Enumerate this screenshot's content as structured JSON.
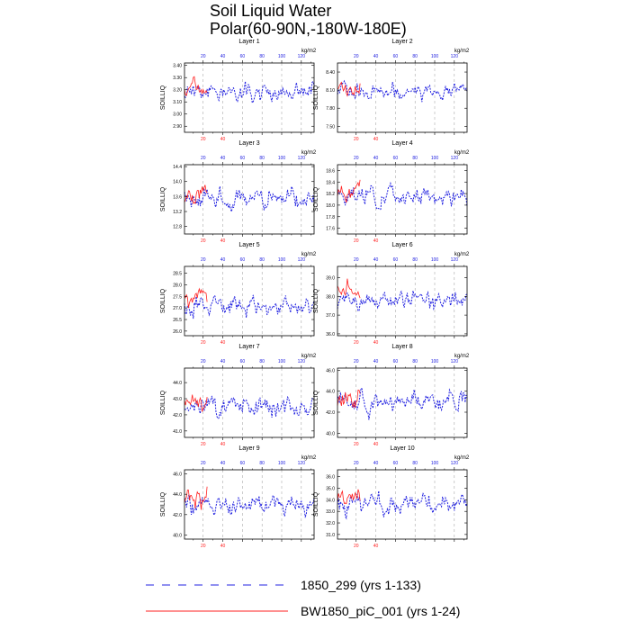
{
  "page": {
    "title_line1": "Soil Liquid Water",
    "title_line2": "Polar(60-90N,-180W-180E)",
    "legend": [
      {
        "label": "1850_299 (yrs 1-133)",
        "style": "dashed",
        "color": "#2020e0"
      },
      {
        "label": "BW1850_piC_001 (yrs 1-24)",
        "style": "solid",
        "color": "#ff2020"
      }
    ]
  },
  "chart_data": [
    {
      "type": "line",
      "title": "Layer 1",
      "units": "kg/m2",
      "ylabel": "SOILLIQ",
      "ylim": [
        2.85,
        3.42
      ],
      "yticks": [
        2.9,
        3.0,
        3.1,
        3.2,
        3.3,
        3.4
      ],
      "ytick_labels": [
        "2.90",
        "3.00",
        "3.10",
        "3.20",
        "3.30",
        "3.40"
      ],
      "xlim": [
        1,
        133
      ],
      "xticks": [
        20,
        40,
        60,
        80,
        100,
        120
      ],
      "xtick_labels": [
        "20",
        "40",
        "60",
        "80",
        "100",
        "120"
      ],
      "series_colors": [
        "#2020e0",
        "#ff2020"
      ],
      "series": [
        {
          "name": "1850_299 (yrs 1-133)",
          "years": [
            1,
            133
          ],
          "mean": 3.18,
          "amp": 0.07,
          "seed": 11
        },
        {
          "name": "BW1850_piC_001 (yrs 1-24)",
          "years": [
            1,
            24
          ],
          "mean": 3.2,
          "amp": 0.07,
          "seed": 111
        }
      ]
    },
    {
      "type": "line",
      "title": "Layer 2",
      "units": "kg/m2",
      "ylabel": "SOILLIQ",
      "ylim": [
        7.4,
        8.55
      ],
      "yticks": [
        7.5,
        7.8,
        8.1,
        8.4
      ],
      "ytick_labels": [
        "7.50",
        "7.80",
        "8.10",
        "8.40"
      ],
      "xlim": [
        1,
        133
      ],
      "xticks": [
        20,
        40,
        60,
        80,
        100,
        120
      ],
      "xtick_labels": [
        "20",
        "40",
        "60",
        "80",
        "100",
        "120"
      ],
      "series_colors": [
        "#2020e0",
        "#ff2020"
      ],
      "series": [
        {
          "name": "1850_299 (yrs 1-133)",
          "years": [
            1,
            133
          ],
          "mean": 8.08,
          "amp": 0.14,
          "seed": 12
        },
        {
          "name": "BW1850_piC_001 (yrs 1-24)",
          "years": [
            1,
            24
          ],
          "mean": 8.12,
          "amp": 0.14,
          "seed": 112
        }
      ]
    },
    {
      "type": "line",
      "title": "Layer 3",
      "units": "kg/m2",
      "ylabel": "SOILLIQ",
      "ylim": [
        12.6,
        14.45
      ],
      "yticks": [
        12.8,
        13.2,
        13.6,
        14.0,
        14.4
      ],
      "ytick_labels": [
        "12.8",
        "13.2",
        "13.6",
        "14.0",
        "14.4"
      ],
      "xlim": [
        1,
        133
      ],
      "xticks": [
        20,
        40,
        60,
        80,
        100,
        120
      ],
      "xtick_labels": [
        "20",
        "40",
        "60",
        "80",
        "100",
        "120"
      ],
      "series_colors": [
        "#2020e0",
        "#ff2020"
      ],
      "series": [
        {
          "name": "1850_299 (yrs 1-133)",
          "years": [
            1,
            133
          ],
          "mean": 13.55,
          "amp": 0.25,
          "seed": 13
        },
        {
          "name": "BW1850_piC_001 (yrs 1-24)",
          "years": [
            1,
            24
          ],
          "mean": 13.62,
          "amp": 0.25,
          "seed": 113
        }
      ]
    },
    {
      "type": "line",
      "title": "Layer 4",
      "units": "kg/m2",
      "ylabel": "SOILLIQ",
      "ylim": [
        17.5,
        18.7
      ],
      "yticks": [
        17.6,
        17.8,
        18.0,
        18.2,
        18.4,
        18.6
      ],
      "ytick_labels": [
        "17.6",
        "17.8",
        "18.0",
        "18.2",
        "18.4",
        "18.6"
      ],
      "xlim": [
        1,
        133
      ],
      "xticks": [
        20,
        40,
        60,
        80,
        100,
        120
      ],
      "xtick_labels": [
        "20",
        "40",
        "60",
        "80",
        "100",
        "120"
      ],
      "series_colors": [
        "#2020e0",
        "#ff2020"
      ],
      "series": [
        {
          "name": "1850_299 (yrs 1-133)",
          "years": [
            1,
            133
          ],
          "mean": 18.15,
          "amp": 0.16,
          "seed": 14
        },
        {
          "name": "BW1850_piC_001 (yrs 1-24)",
          "years": [
            1,
            24
          ],
          "mean": 18.25,
          "amp": 0.16,
          "seed": 114
        }
      ]
    },
    {
      "type": "line",
      "title": "Layer 5",
      "units": "kg/m2",
      "ylabel": "SOILLIQ",
      "ylim": [
        25.8,
        28.8
      ],
      "yticks": [
        26.0,
        26.5,
        27.0,
        27.5,
        28.0,
        28.5
      ],
      "ytick_labels": [
        "26.0",
        "26.5",
        "27.0",
        "27.5",
        "28.0",
        "28.5"
      ],
      "xlim": [
        1,
        133
      ],
      "xticks": [
        20,
        40,
        60,
        80,
        100,
        120
      ],
      "xtick_labels": [
        "20",
        "40",
        "60",
        "80",
        "100",
        "120"
      ],
      "series_colors": [
        "#2020e0",
        "#ff2020"
      ],
      "series": [
        {
          "name": "1850_299 (yrs 1-133)",
          "years": [
            1,
            133
          ],
          "mean": 27.1,
          "amp": 0.38,
          "seed": 15
        },
        {
          "name": "BW1850_piC_001 (yrs 1-24)",
          "years": [
            1,
            24
          ],
          "mean": 27.5,
          "amp": 0.38,
          "seed": 115
        }
      ]
    },
    {
      "type": "line",
      "title": "Layer 6",
      "units": "kg/m2",
      "ylabel": "SOILLIQ",
      "ylim": [
        35.9,
        39.6
      ],
      "yticks": [
        36.0,
        37.0,
        38.0,
        39.0
      ],
      "ytick_labels": [
        "36.0",
        "37.0",
        "38.0",
        "39.0"
      ],
      "xlim": [
        1,
        133
      ],
      "xticks": [
        20,
        40,
        60,
        80,
        100,
        120
      ],
      "xtick_labels": [
        "20",
        "40",
        "60",
        "80",
        "100",
        "120"
      ],
      "series_colors": [
        "#2020e0",
        "#ff2020"
      ],
      "series": [
        {
          "name": "1850_299 (yrs 1-133)",
          "years": [
            1,
            133
          ],
          "mean": 37.8,
          "amp": 0.45,
          "seed": 16
        },
        {
          "name": "BW1850_piC_001 (yrs 1-24)",
          "years": [
            1,
            24
          ],
          "mean": 38.3,
          "amp": 0.45,
          "seed": 116
        }
      ]
    },
    {
      "type": "line",
      "title": "Layer 7",
      "units": "kg/m2",
      "ylabel": "SOILLIQ",
      "ylim": [
        40.6,
        44.9
      ],
      "yticks": [
        41.0,
        42.0,
        43.0,
        44.0
      ],
      "ytick_labels": [
        "41.0",
        "42.0",
        "43.0",
        "44.0"
      ],
      "xlim": [
        1,
        133
      ],
      "xticks": [
        20,
        40,
        60,
        80,
        100,
        120
      ],
      "xtick_labels": [
        "20",
        "40",
        "60",
        "80",
        "100",
        "120"
      ],
      "series_colors": [
        "#2020e0",
        "#ff2020"
      ],
      "series": [
        {
          "name": "1850_299 (yrs 1-133)",
          "years": [
            1,
            133
          ],
          "mean": 42.6,
          "amp": 0.6,
          "seed": 17
        },
        {
          "name": "BW1850_piC_001 (yrs 1-24)",
          "years": [
            1,
            24
          ],
          "mean": 42.8,
          "amp": 0.6,
          "seed": 117
        }
      ]
    },
    {
      "type": "line",
      "title": "Layer 8",
      "units": "kg/m2",
      "ylabel": "SOILLIQ",
      "ylim": [
        39.6,
        46.2
      ],
      "yticks": [
        40.0,
        42.0,
        44.0,
        46.0
      ],
      "ytick_labels": [
        "40.0",
        "42.0",
        "44.0",
        "46.0"
      ],
      "xlim": [
        1,
        133
      ],
      "xticks": [
        20,
        40,
        60,
        80,
        100,
        120
      ],
      "xtick_labels": [
        "20",
        "40",
        "60",
        "80",
        "100",
        "120"
      ],
      "series_colors": [
        "#2020e0",
        "#ff2020"
      ],
      "series": [
        {
          "name": "1850_299 (yrs 1-133)",
          "years": [
            1,
            133
          ],
          "mean": 42.9,
          "amp": 0.9,
          "seed": 18
        },
        {
          "name": "BW1850_piC_001 (yrs 1-24)",
          "years": [
            1,
            24
          ],
          "mean": 43.4,
          "amp": 0.9,
          "seed": 118
        }
      ]
    },
    {
      "type": "line",
      "title": "Layer 9",
      "units": "kg/m2",
      "ylabel": "SOILLIQ",
      "ylim": [
        39.6,
        46.4
      ],
      "yticks": [
        40.0,
        42.0,
        44.0,
        46.0
      ],
      "ytick_labels": [
        "40.0",
        "42.0",
        "44.0",
        "46.0"
      ],
      "xlim": [
        1,
        133
      ],
      "xticks": [
        20,
        40,
        60,
        80,
        100,
        120
      ],
      "xtick_labels": [
        "20",
        "40",
        "60",
        "80",
        "100",
        "120"
      ],
      "series_colors": [
        "#2020e0",
        "#ff2020"
      ],
      "series": [
        {
          "name": "1850_299 (yrs 1-133)",
          "years": [
            1,
            133
          ],
          "mean": 43.0,
          "amp": 0.9,
          "seed": 19
        },
        {
          "name": "BW1850_piC_001 (yrs 1-24)",
          "years": [
            1,
            24
          ],
          "mean": 43.8,
          "amp": 0.9,
          "seed": 119
        }
      ]
    },
    {
      "type": "line",
      "title": "Layer 10",
      "units": "kg/m2",
      "ylabel": "SOILLIQ",
      "ylim": [
        30.6,
        36.6
      ],
      "yticks": [
        31.0,
        32.0,
        33.0,
        34.0,
        35.0,
        36.0
      ],
      "ytick_labels": [
        "31.0",
        "32.0",
        "33.0",
        "34.0",
        "35.0",
        "36.0"
      ],
      "xlim": [
        1,
        133
      ],
      "xticks": [
        20,
        40,
        60,
        80,
        100,
        120
      ],
      "xtick_labels": [
        "20",
        "40",
        "60",
        "80",
        "100",
        "120"
      ],
      "series_colors": [
        "#2020e0",
        "#ff2020"
      ],
      "series": [
        {
          "name": "1850_299 (yrs 1-133)",
          "years": [
            1,
            133
          ],
          "mean": 33.7,
          "amp": 0.8,
          "seed": 20
        },
        {
          "name": "BW1850_piC_001 (yrs 1-24)",
          "years": [
            1,
            24
          ],
          "mean": 34.3,
          "amp": 0.8,
          "seed": 120
        }
      ]
    }
  ]
}
